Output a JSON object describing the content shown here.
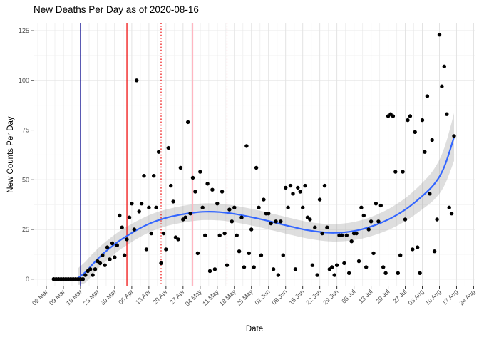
{
  "header": {
    "title": "New Deaths Per Day as of 2020-08-16"
  },
  "axis": {
    "xlabel": "Date",
    "ylabel": "New Counts Per Day"
  },
  "chart_data": {
    "type": "scatter",
    "title": "New Deaths Per Day as of 2020-08-16",
    "xlabel": "Date",
    "ylabel": "New Counts Per Day",
    "x_tick_labels": [
      "02 Mar",
      "09 Mar",
      "16 Mar",
      "23 Mar",
      "30 Mar",
      "06 Apr",
      "13 Apr",
      "20 Apr",
      "27 Apr",
      "04 May",
      "11 May",
      "18 May",
      "25 May",
      "01 Jun",
      "08 Jun",
      "15 Jun",
      "22 Jun",
      "29 Jun",
      "06 Jul",
      "13 Jul",
      "20 Jul",
      "27 Jul",
      "03 Aug",
      "10 Aug",
      "17 Aug",
      "24 Aug"
    ],
    "y_tick_labels": [
      "0",
      "25",
      "50",
      "75",
      "100",
      "125"
    ],
    "y_ticks": [
      0,
      25,
      50,
      75,
      100,
      125
    ],
    "ylim": [
      0,
      125
    ],
    "grid": true,
    "points": {
      "start_day_offset_from_first_tick": 3,
      "values": [
        0,
        0,
        0,
        0,
        0,
        0,
        0,
        0,
        0,
        0,
        0,
        0,
        0,
        2,
        4,
        5,
        2,
        5,
        9,
        8,
        12,
        7,
        16,
        10,
        18,
        11,
        17,
        32,
        26,
        12,
        20,
        31,
        38,
        25,
        100,
        34,
        38,
        52,
        15,
        36,
        23,
        52,
        36,
        64,
        8,
        23,
        15,
        66,
        47,
        39,
        21,
        20,
        56,
        30,
        31,
        79,
        33,
        51,
        44,
        13,
        54,
        36,
        22,
        48,
        4,
        45,
        5,
        38,
        22,
        44,
        23,
        7,
        35,
        29,
        36,
        22,
        14,
        31,
        6,
        67,
        13,
        25,
        6,
        56,
        36,
        12,
        40,
        33,
        33,
        28,
        5,
        29,
        2,
        29,
        12,
        46,
        36,
        47,
        43,
        5,
        46,
        44,
        36,
        47,
        31,
        30,
        7,
        26,
        2,
        40,
        23,
        47,
        26,
        5,
        6,
        2,
        7,
        22,
        22,
        8,
        22,
        3,
        19,
        23,
        23,
        9,
        36,
        32,
        6,
        25,
        29,
        13,
        38,
        29,
        37,
        6,
        3,
        82,
        83,
        82,
        54,
        3,
        12,
        54,
        30,
        80,
        82,
        15,
        74,
        16,
        3,
        80,
        64,
        92,
        43,
        70,
        14,
        30,
        123,
        97,
        107,
        83,
        36,
        33,
        72
      ]
    },
    "smooth": {
      "color": "#3366FF",
      "band_color": "#999999",
      "band_opacity": 0.32,
      "anchors_day_value_halfwidth": [
        [
          13,
          0.5,
          5
        ],
        [
          16,
          3.5,
          5.3
        ],
        [
          19,
          7.5,
          5.3
        ],
        [
          23,
          12.5,
          5
        ],
        [
          29,
          18.5,
          4.8
        ],
        [
          34,
          22.5,
          4.6
        ],
        [
          39,
          26,
          4.4
        ],
        [
          44,
          28.8,
          4.3
        ],
        [
          49,
          30.8,
          4.2
        ],
        [
          54,
          32.2,
          4.2
        ],
        [
          60,
          33.4,
          4.2
        ],
        [
          65,
          33.9,
          4.2
        ],
        [
          71,
          33.7,
          4.2
        ],
        [
          77,
          32.8,
          4.2
        ],
        [
          83,
          31.4,
          4.2
        ],
        [
          89,
          29.8,
          4.2
        ],
        [
          95,
          28,
          4.2
        ],
        [
          101,
          26.2,
          4.2
        ],
        [
          107,
          24.6,
          4.2
        ],
        [
          113,
          23.6,
          4.3
        ],
        [
          118,
          23.3,
          4.4
        ],
        [
          124,
          23.8,
          4.5
        ],
        [
          130,
          25.3,
          4.7
        ],
        [
          136,
          27.8,
          5
        ],
        [
          142,
          31.2,
          5.4
        ],
        [
          148,
          35.8,
          5.9
        ],
        [
          154,
          41.8,
          6.7
        ],
        [
          159,
          48,
          7.8
        ],
        [
          163,
          56.5,
          9.5
        ],
        [
          167,
          71.5,
          12
        ]
      ]
    },
    "vlines": [
      {
        "day_offset": 14,
        "style": "solid",
        "color": "#00008B"
      },
      {
        "day_offset": 33,
        "style": "solid",
        "color": "#EE0000"
      },
      {
        "day_offset": 47,
        "style": "dotted",
        "color": "#EE0000"
      },
      {
        "day_offset": 60,
        "style": "solid",
        "color": "#FFB6C1"
      },
      {
        "day_offset": 74,
        "style": "dotted",
        "color": "#FFB6C1"
      }
    ],
    "colors": {
      "point": "#000000",
      "grid_major": "#E3E3E3",
      "grid_minor": "#F1F1F1",
      "tick_text": "#4D4D4D",
      "tick_mark": "#333333"
    }
  }
}
